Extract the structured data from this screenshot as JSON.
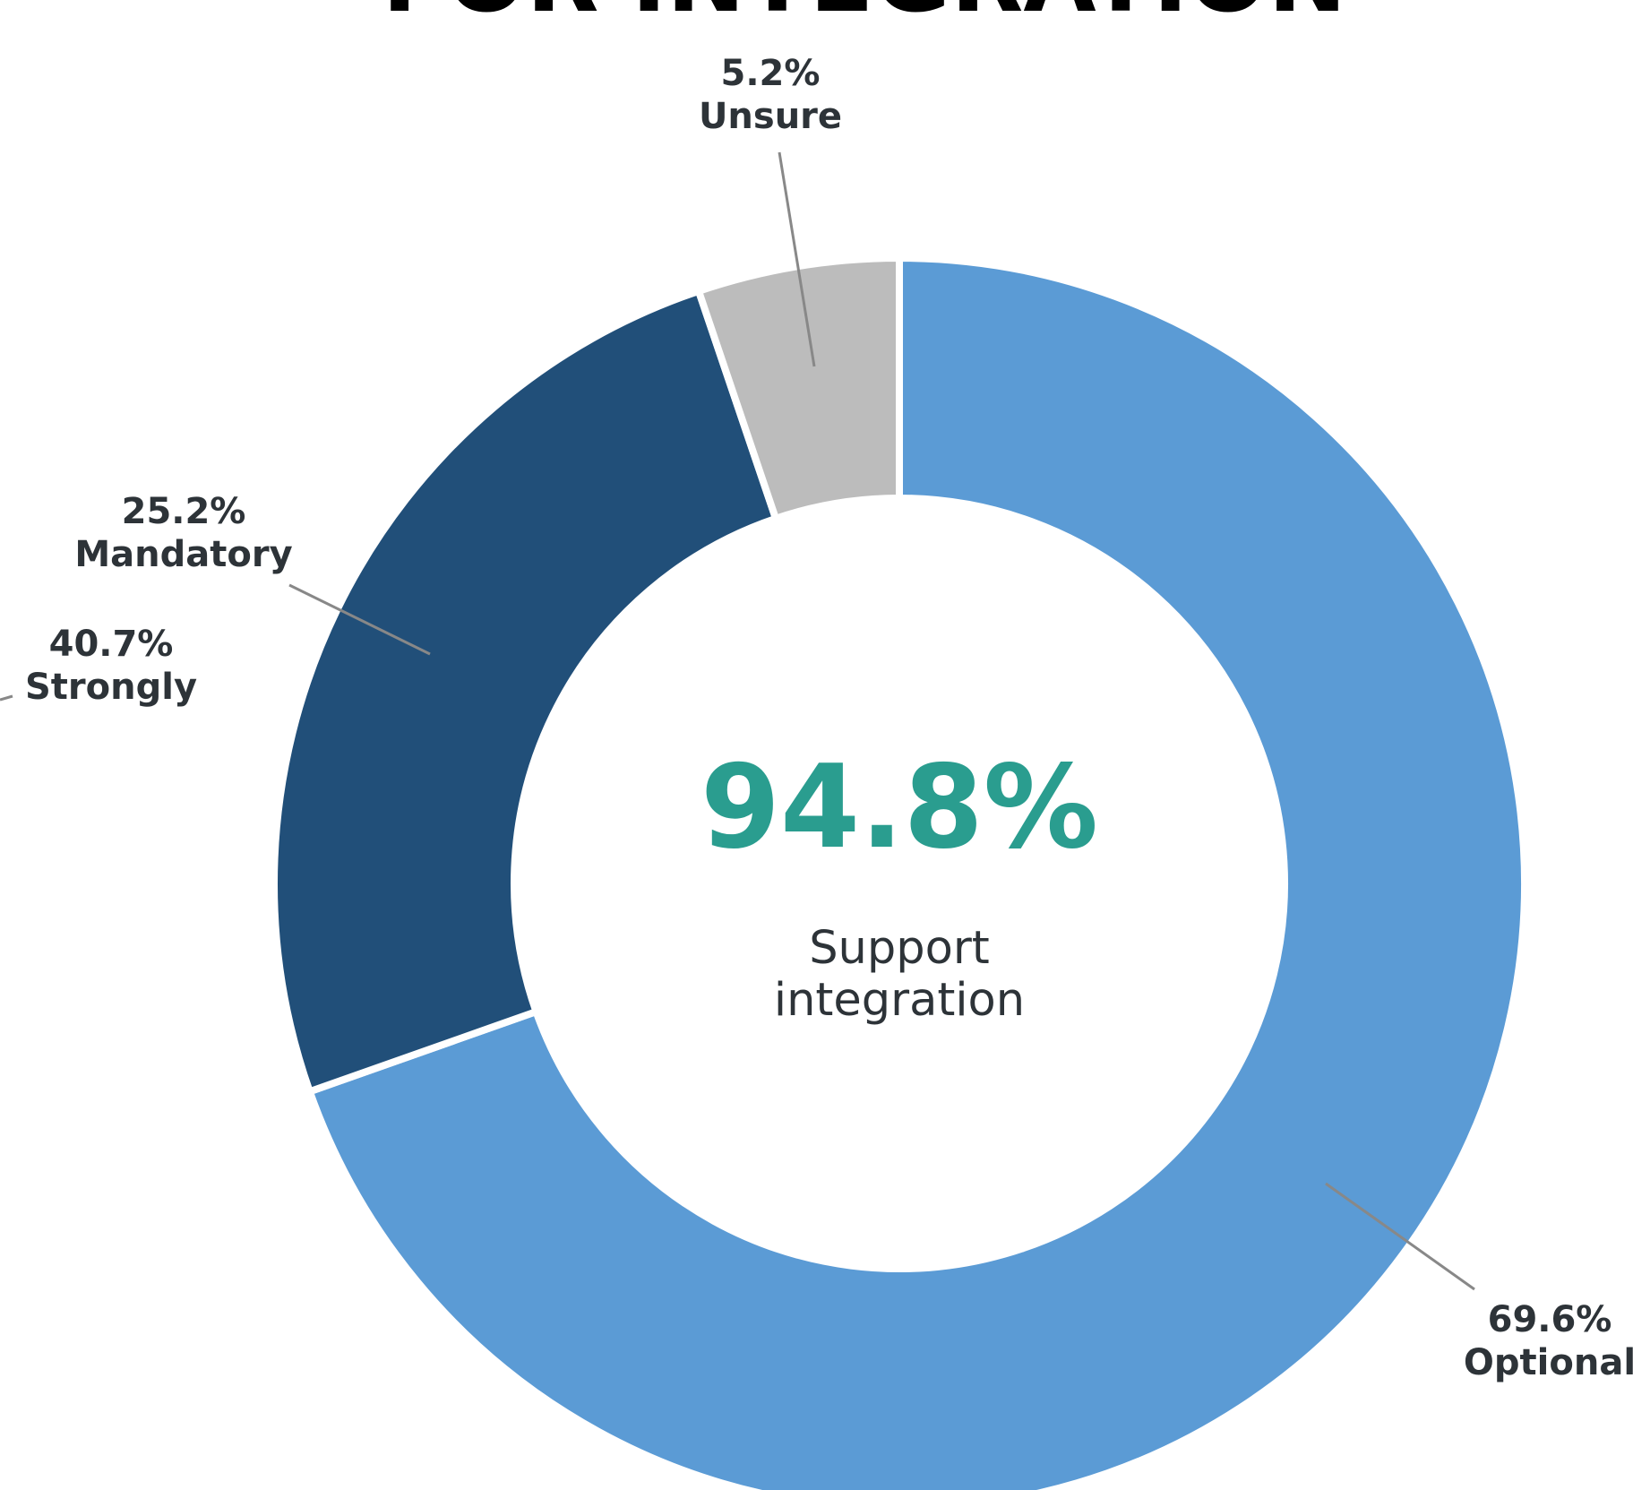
{
  "chart_data": {
    "type": "donut",
    "title": "FOR INTEGRATION",
    "categories": [
      "Optional",
      "Mandatory",
      "Unsure"
    ],
    "values": [
      69.6,
      25.2,
      5.2
    ],
    "value_labels": [
      "69.6%",
      "25.2%",
      "5.2%"
    ],
    "colors": [
      "#5b9bd5",
      "#214f79",
      "#bcbcbc"
    ],
    "center_value": "94.8%",
    "center_label": [
      "Support",
      "integration"
    ],
    "annotations": [
      {
        "label": "Strongly",
        "value_label": "40.7%"
      }
    ]
  }
}
